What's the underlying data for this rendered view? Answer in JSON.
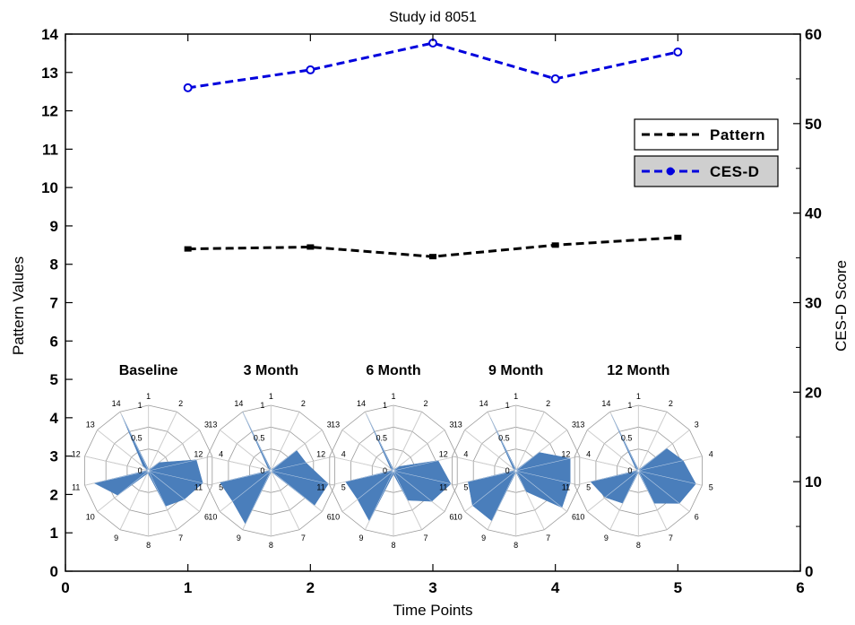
{
  "chart_data": {
    "type": "line",
    "title": "Study id 8051",
    "xlabel": "Time Points",
    "ylabel": "Pattern Values",
    "ylabel_right": "CES-D Score",
    "xlim": [
      0,
      6
    ],
    "ylim": [
      0,
      14
    ],
    "ylim_right": [
      0,
      60
    ],
    "x_ticks": [
      "0",
      "1",
      "2",
      "3",
      "4",
      "5",
      "6"
    ],
    "y_ticks": [
      "0",
      "1",
      "2",
      "3",
      "4",
      "5",
      "6",
      "7",
      "8",
      "9",
      "10",
      "11",
      "12",
      "13",
      "14"
    ],
    "y_ticks_right": [
      "0",
      "10",
      "20",
      "30",
      "40",
      "50",
      "60"
    ],
    "grid": false,
    "legend_position": "right",
    "series": [
      {
        "name": "Pattern",
        "axis": "left",
        "color": "#000000",
        "style": "dashed-line square-markers",
        "x": [
          1,
          2,
          3,
          4,
          5
        ],
        "y": [
          8.4,
          8.45,
          8.2,
          8.5,
          8.7
        ]
      },
      {
        "name": "CES-D",
        "axis": "right",
        "color": "#0000dd",
        "style": "dashed-line circle-markers",
        "x": [
          1,
          2,
          3,
          4,
          5
        ],
        "y": [
          54,
          56,
          59,
          55,
          58
        ]
      }
    ],
    "radar_insets": {
      "spoke_labels": [
        "1",
        "2",
        "3",
        "4",
        "5",
        "6",
        "7",
        "8",
        "9",
        "10",
        "11",
        "12",
        "13",
        "14"
      ],
      "ring_labels": [
        "0",
        "0.5",
        "1"
      ],
      "fill_color": "#4a7ebb",
      "charts": [
        {
          "label": "Baseline",
          "x": 1,
          "values": [
            0,
            0,
            0.2,
            0.75,
            0.85,
            0.7,
            0.6,
            0.05,
            0.05,
            0.6,
            0.85,
            0,
            0.1,
            0.95
          ]
        },
        {
          "label": "3 Month",
          "x": 2,
          "values": [
            0,
            0,
            0.5,
            0.55,
            0.9,
            0.85,
            0,
            0,
            0.9,
            0.75,
            0.8,
            0,
            0.05,
            1.0
          ]
        },
        {
          "label": "6 Month",
          "x": 3,
          "values": [
            0,
            0,
            0.1,
            0.7,
            0.9,
            0.75,
            0.5,
            0.05,
            0.85,
            0.7,
            0.75,
            0,
            0.05,
            0.95
          ]
        },
        {
          "label": "9 Month",
          "x": 4,
          "values": [
            0,
            0,
            0.45,
            0.85,
            0.85,
            0.9,
            0.35,
            0,
            0.85,
            0.85,
            0.75,
            0,
            0.05,
            0.9
          ]
        },
        {
          "label": "12 Month",
          "x": 5,
          "values": [
            0,
            0,
            0.55,
            0.7,
            0.9,
            0.8,
            0.55,
            0,
            0.55,
            0.65,
            0.75,
            0,
            0.05,
            0.95
          ]
        }
      ]
    }
  }
}
